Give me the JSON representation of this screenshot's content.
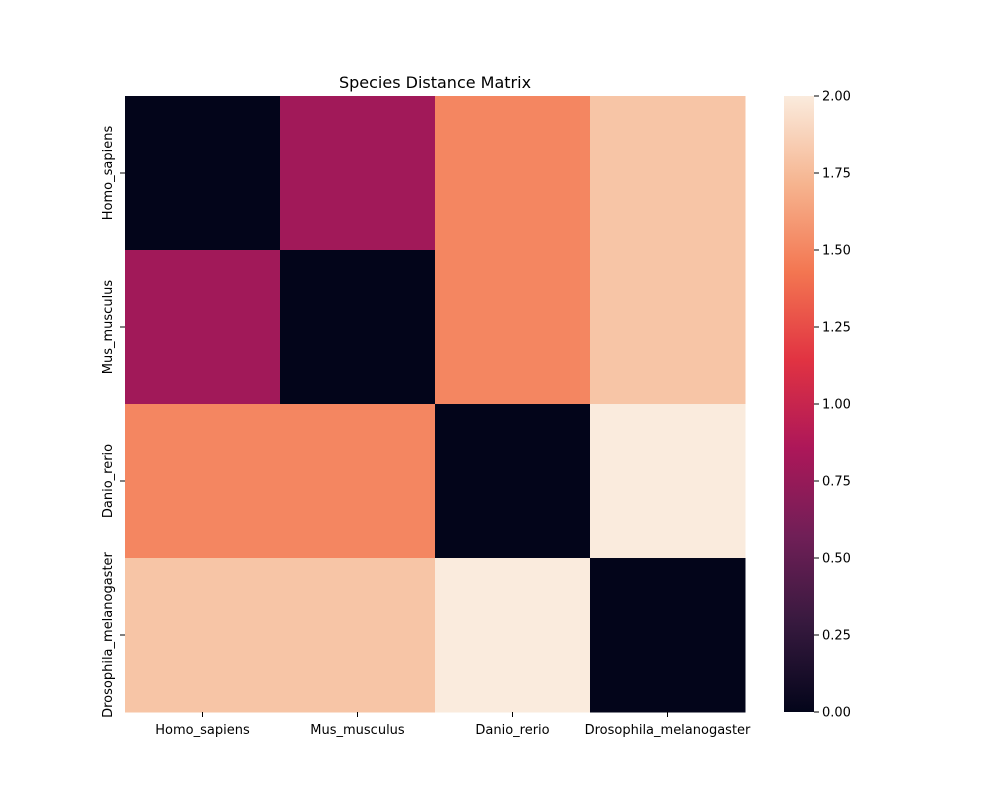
{
  "chart_data": {
    "type": "heatmap",
    "title": "Species Distance Matrix",
    "xlabel": "",
    "ylabel": "",
    "x_categories": [
      "Homo_sapiens",
      "Mus_musculus",
      "Danio_rerio",
      "Drosophila_melanogaster"
    ],
    "y_categories": [
      "Homo_sapiens",
      "Mus_musculus",
      "Danio_rerio",
      "Drosophila_melanogaster"
    ],
    "values": [
      [
        0.0,
        0.8,
        1.5,
        1.8
      ],
      [
        0.8,
        0.0,
        1.5,
        1.8
      ],
      [
        1.5,
        1.5,
        0.0,
        2.0
      ],
      [
        1.8,
        1.8,
        2.0,
        0.0
      ]
    ],
    "colorbar": {
      "range": [
        0,
        2
      ],
      "ticks": [
        0.0,
        0.25,
        0.5,
        0.75,
        1.0,
        1.25,
        1.5,
        1.75,
        2.0
      ],
      "tick_labels": [
        "0.00",
        "0.25",
        "0.50",
        "0.75",
        "1.00",
        "1.25",
        "1.50",
        "1.75",
        "2.00"
      ]
    },
    "colormap": "rocket",
    "colormap_stops": [
      "#03051a",
      "#36193e",
      "#701f57",
      "#ad1759",
      "#e13342",
      "#f37651",
      "#f6b48f",
      "#faebdd"
    ],
    "grid": false,
    "legend": "colorbar-right"
  }
}
